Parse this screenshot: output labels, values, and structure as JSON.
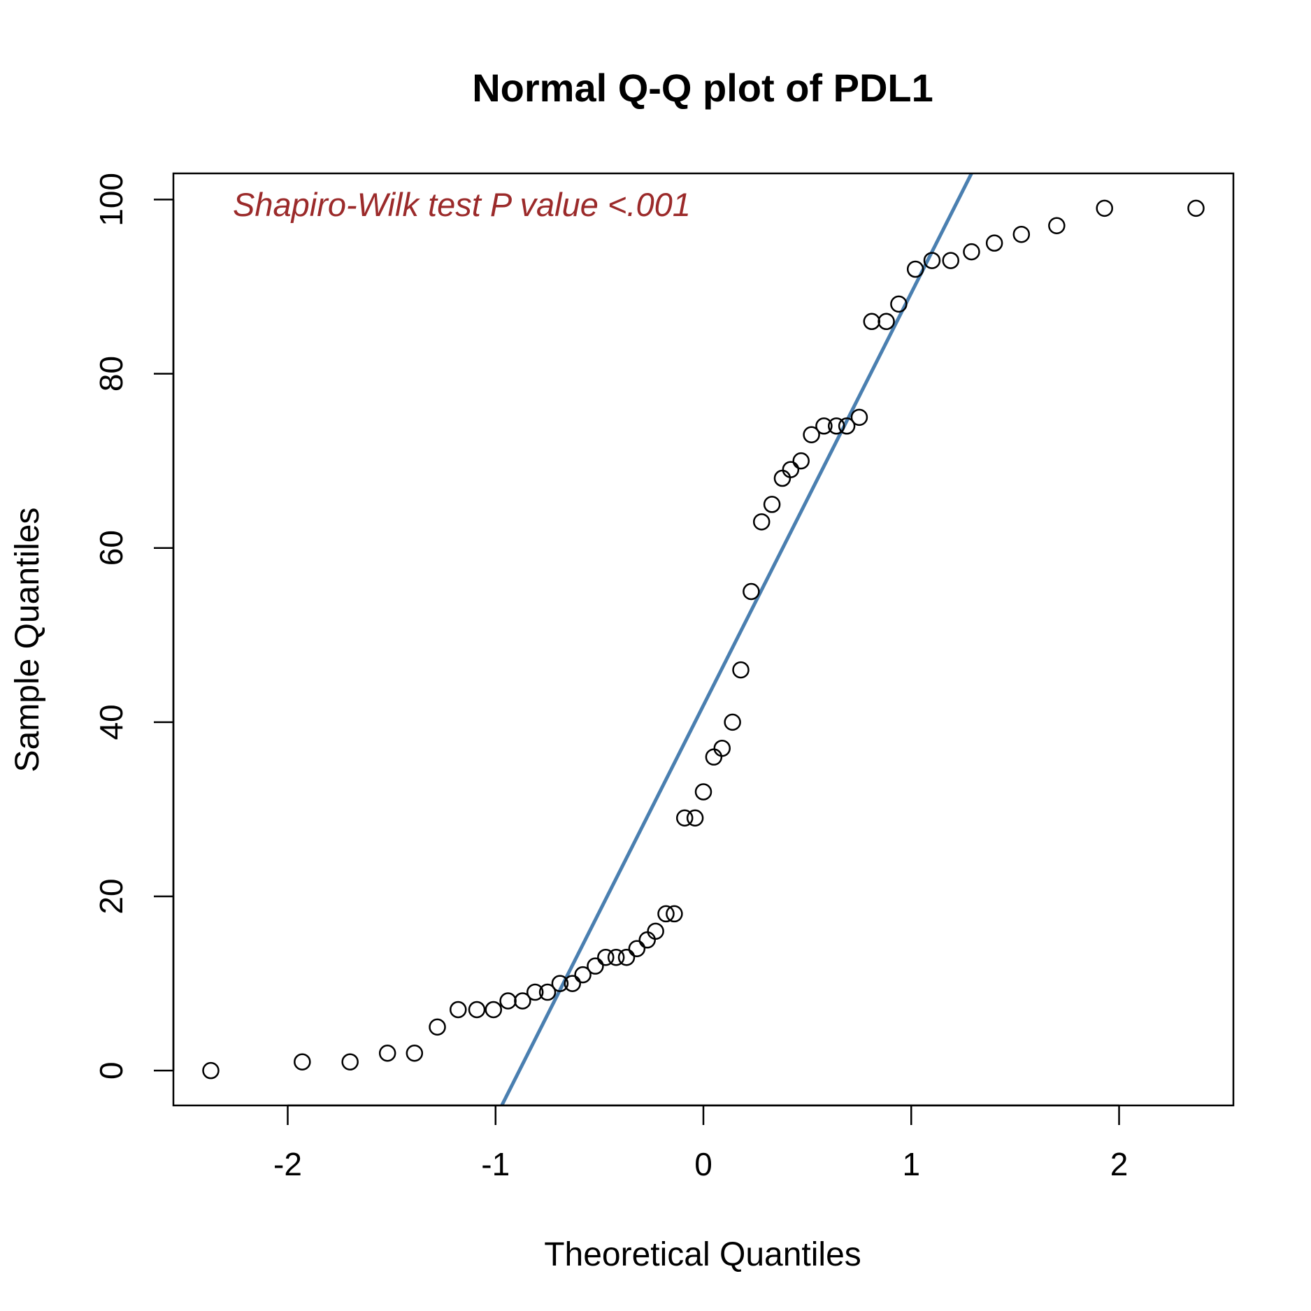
{
  "chart_data": {
    "type": "scatter",
    "title": "Normal Q-Q plot of PDL1",
    "xlabel": "Theoretical Quantiles",
    "ylabel": "Sample Quantiles",
    "xlim": [
      -2.55,
      2.55
    ],
    "ylim": [
      -4,
      103
    ],
    "xticks": [
      -2,
      -1,
      0,
      1,
      2
    ],
    "xtick_labels": [
      "-2",
      "-1",
      "0",
      "1",
      "2"
    ],
    "yticks": [
      0,
      20,
      40,
      60,
      80,
      100
    ],
    "ytick_labels": [
      "0",
      "20",
      "40",
      "60",
      "80",
      "100"
    ],
    "grid": false,
    "annotation": {
      "text": "Shapiro-Wilk test P value <.001",
      "color": "#9b2a2a",
      "position": "top-left"
    },
    "reference_line": {
      "color": "#4a7fb0",
      "points": [
        [
          -0.97,
          -4
        ],
        [
          1.29,
          103
        ]
      ]
    },
    "series": [
      {
        "marker": "open-circle",
        "color": "#000000",
        "points": [
          [
            -2.37,
            0
          ],
          [
            -1.93,
            1
          ],
          [
            -1.7,
            1
          ],
          [
            -1.52,
            2
          ],
          [
            -1.39,
            2
          ],
          [
            -1.28,
            5
          ],
          [
            -1.18,
            7
          ],
          [
            -1.09,
            7
          ],
          [
            -1.01,
            7
          ],
          [
            -0.94,
            8
          ],
          [
            -0.87,
            8
          ],
          [
            -0.81,
            9
          ],
          [
            -0.75,
            9
          ],
          [
            -0.69,
            10
          ],
          [
            -0.63,
            10
          ],
          [
            -0.58,
            11
          ],
          [
            -0.52,
            12
          ],
          [
            -0.47,
            13
          ],
          [
            -0.42,
            13
          ],
          [
            -0.37,
            13
          ],
          [
            -0.32,
            14
          ],
          [
            -0.27,
            15
          ],
          [
            -0.23,
            16
          ],
          [
            -0.18,
            18
          ],
          [
            -0.14,
            18
          ],
          [
            -0.09,
            29
          ],
          [
            -0.04,
            29
          ],
          [
            0.0,
            32
          ],
          [
            0.05,
            36
          ],
          [
            0.09,
            37
          ],
          [
            0.14,
            40
          ],
          [
            0.18,
            46
          ],
          [
            0.23,
            55
          ],
          [
            0.28,
            63
          ],
          [
            0.33,
            65
          ],
          [
            0.38,
            68
          ],
          [
            0.42,
            69
          ],
          [
            0.47,
            70
          ],
          [
            0.52,
            73
          ],
          [
            0.58,
            74
          ],
          [
            0.64,
            74
          ],
          [
            0.69,
            74
          ],
          [
            0.75,
            75
          ],
          [
            0.81,
            86
          ],
          [
            0.88,
            86
          ],
          [
            0.94,
            88
          ],
          [
            1.02,
            92
          ],
          [
            1.1,
            93
          ],
          [
            1.19,
            93
          ],
          [
            1.29,
            94
          ],
          [
            1.4,
            95
          ],
          [
            1.53,
            96
          ],
          [
            1.7,
            97
          ],
          [
            1.93,
            99
          ],
          [
            2.37,
            99
          ]
        ]
      }
    ]
  }
}
